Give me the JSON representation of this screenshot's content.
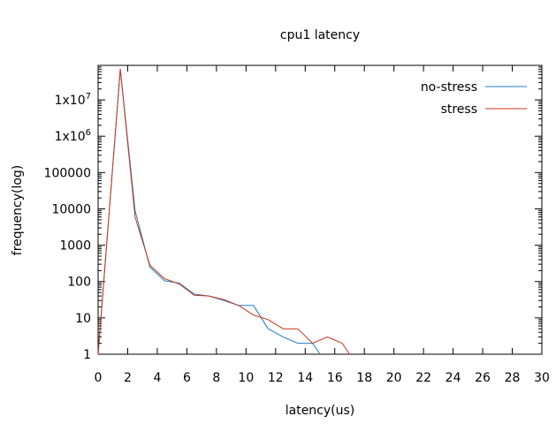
{
  "chart_data": {
    "type": "line",
    "title": "cpu1 latency",
    "xlabel": "latency(us)",
    "ylabel": "frequency(log)",
    "xlim": [
      0,
      30
    ],
    "ylim": [
      1,
      100000000
    ],
    "yscale": "log",
    "grid": false,
    "legend": "top-right",
    "x_ticks": [
      0,
      2,
      4,
      6,
      8,
      10,
      12,
      14,
      16,
      18,
      20,
      22,
      24,
      26,
      28,
      30
    ],
    "y_ticks": [
      {
        "value": 1,
        "label": "1"
      },
      {
        "value": 10,
        "label": "10"
      },
      {
        "value": 100,
        "label": "100"
      },
      {
        "value": 1000,
        "label": "1000"
      },
      {
        "value": 10000,
        "label": "10000"
      },
      {
        "value": 100000,
        "label": "100000"
      },
      {
        "value": 1000000,
        "label": "1x10^6"
      },
      {
        "value": 10000000,
        "label": "1x10^7"
      }
    ],
    "series": [
      {
        "name": "no-stress",
        "color": "#1a7bbf",
        "points": [
          [
            0,
            1
          ],
          [
            1.5,
            70000000
          ],
          [
            2.5,
            9000
          ],
          [
            3.5,
            250
          ],
          [
            4.5,
            105
          ],
          [
            5.5,
            90
          ],
          [
            6.5,
            45
          ],
          [
            7.5,
            40
          ],
          [
            8.5,
            30
          ],
          [
            9.5,
            22
          ],
          [
            10.5,
            22
          ],
          [
            11.5,
            5
          ],
          [
            12.5,
            3
          ],
          [
            13.5,
            2
          ],
          [
            14.5,
            2
          ],
          [
            15,
            1
          ]
        ]
      },
      {
        "name": "stress",
        "color": "#c8341c",
        "points": [
          [
            0,
            1
          ],
          [
            1.5,
            70000000
          ],
          [
            2.5,
            6000
          ],
          [
            3.5,
            280
          ],
          [
            4.5,
            120
          ],
          [
            5.5,
            85
          ],
          [
            6.5,
            42
          ],
          [
            7.5,
            40
          ],
          [
            8.5,
            32
          ],
          [
            9.5,
            22
          ],
          [
            10.5,
            12
          ],
          [
            11.5,
            9
          ],
          [
            12.5,
            5
          ],
          [
            13.5,
            5
          ],
          [
            14.5,
            2
          ],
          [
            15.5,
            3
          ],
          [
            16.5,
            2
          ],
          [
            17,
            1
          ]
        ]
      }
    ]
  }
}
